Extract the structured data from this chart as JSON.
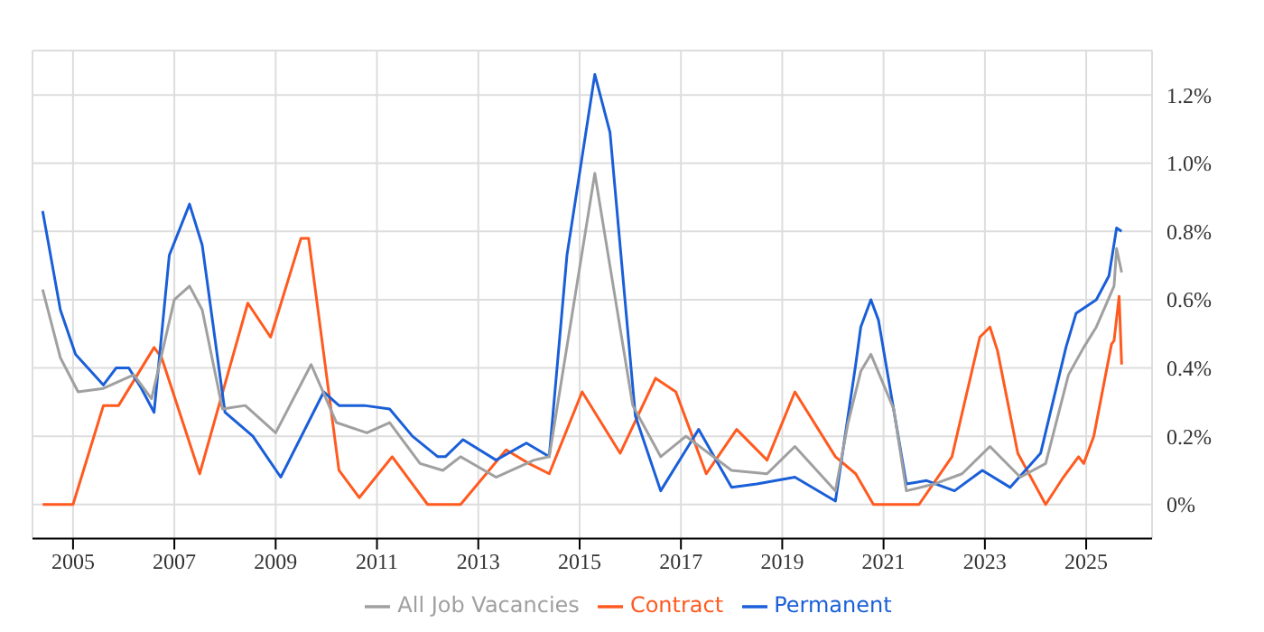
{
  "chart_data": {
    "type": "line",
    "xlim": [
      2004.2,
      2026.3
    ],
    "xticks": [
      2005,
      2007,
      2009,
      2011,
      2013,
      2015,
      2017,
      2019,
      2021,
      2023,
      2025
    ],
    "ylim": [
      -0.1,
      1.33
    ],
    "yticks": [
      {
        "value": 0,
        "label": "0%"
      },
      {
        "value": 0.2,
        "label": "0.2%"
      },
      {
        "value": 0.4,
        "label": "0.4%"
      },
      {
        "value": 0.6,
        "label": "0.6%"
      },
      {
        "value": 0.8,
        "label": "0.8%"
      },
      {
        "value": 1.0,
        "label": "1.0%"
      },
      {
        "value": 1.2,
        "label": "1.2%"
      }
    ],
    "grid": true,
    "legend": "bottom",
    "marker": "none",
    "line_style": "solid",
    "series": [
      {
        "name": "Contract",
        "color": "#ff5a1f",
        "x": [
          2004.4,
          2005.0,
          2005.6,
          2005.9,
          2006.6,
          2006.75,
          2007.5,
          2008.45,
          2008.9,
          2009.5,
          2009.65,
          2010.25,
          2010.65,
          2011.3,
          2012.0,
          2012.65,
          2013.55,
          2014.0,
          2014.4,
          2015.05,
          2015.8,
          2016.5,
          2016.9,
          2017.5,
          2018.1,
          2018.7,
          2019.25,
          2020.05,
          2020.45,
          2020.8,
          2021.7,
          2022.35,
          2022.9,
          2023.1,
          2023.25,
          2023.65,
          2024.2,
          2024.55,
          2024.85,
          2024.95,
          2025.15,
          2025.5,
          2025.55,
          2025.65,
          2025.7
        ],
        "values": [
          0,
          0,
          0.29,
          0.29,
          0.46,
          0.43,
          0.09,
          0.59,
          0.49,
          0.78,
          0.78,
          0.1,
          0.02,
          0.14,
          0,
          0,
          0.16,
          0.12,
          0.09,
          0.33,
          0.15,
          0.37,
          0.33,
          0.09,
          0.22,
          0.13,
          0.33,
          0.14,
          0.09,
          0,
          0,
          0.14,
          0.49,
          0.52,
          0.45,
          0.15,
          0,
          0.08,
          0.14,
          0.12,
          0.2,
          0.47,
          0.48,
          0.61,
          0.41
        ]
      },
      {
        "name": "Permanent",
        "color": "#1a5fd8",
        "x": [
          2004.4,
          2004.75,
          2005.05,
          2005.6,
          2005.85,
          2006.1,
          2006.35,
          2006.6,
          2006.9,
          2007.3,
          2007.55,
          2008.0,
          2008.55,
          2009.1,
          2009.95,
          2010.25,
          2010.75,
          2011.25,
          2011.7,
          2012.2,
          2012.35,
          2012.7,
          2013.35,
          2013.95,
          2014.4,
          2014.75,
          2015.3,
          2015.6,
          2016.1,
          2016.6,
          2017.35,
          2018.0,
          2018.5,
          2019.25,
          2020.05,
          2020.45,
          2020.55,
          2020.75,
          2020.9,
          2021.45,
          2021.85,
          2022.4,
          2022.95,
          2023.5,
          2024.1,
          2024.6,
          2024.8,
          2025.2,
          2025.45,
          2025.6,
          2025.7
        ],
        "values": [
          0.86,
          0.57,
          0.44,
          0.35,
          0.4,
          0.4,
          0.34,
          0.27,
          0.73,
          0.88,
          0.76,
          0.27,
          0.2,
          0.08,
          0.33,
          0.29,
          0.29,
          0.28,
          0.2,
          0.14,
          0.14,
          0.19,
          0.13,
          0.18,
          0.14,
          0.73,
          1.26,
          1.09,
          0.26,
          0.04,
          0.22,
          0.05,
          0.06,
          0.08,
          0.01,
          0.41,
          0.52,
          0.6,
          0.54,
          0.06,
          0.07,
          0.04,
          0.1,
          0.05,
          0.15,
          0.46,
          0.56,
          0.6,
          0.67,
          0.81,
          0.8
        ]
      },
      {
        "name": "All Job Vacancies",
        "color": "#a0a0a0",
        "x": [
          2004.4,
          2004.75,
          2005.1,
          2005.6,
          2006.2,
          2006.55,
          2007.0,
          2007.3,
          2007.55,
          2007.95,
          2008.4,
          2009.0,
          2009.7,
          2010.2,
          2010.8,
          2011.25,
          2011.85,
          2012.3,
          2012.65,
          2013.35,
          2014.1,
          2014.4,
          2015.3,
          2016.05,
          2016.6,
          2017.1,
          2018.0,
          2018.7,
          2019.25,
          2020.05,
          2020.3,
          2020.55,
          2020.75,
          2021.2,
          2021.45,
          2022.0,
          2022.55,
          2023.1,
          2023.7,
          2024.2,
          2024.65,
          2024.95,
          2025.2,
          2025.55,
          2025.6,
          2025.7
        ],
        "values": [
          0.63,
          0.43,
          0.33,
          0.34,
          0.38,
          0.31,
          0.6,
          0.64,
          0.57,
          0.28,
          0.29,
          0.21,
          0.41,
          0.24,
          0.21,
          0.24,
          0.12,
          0.1,
          0.14,
          0.08,
          0.13,
          0.14,
          0.97,
          0.29,
          0.14,
          0.2,
          0.1,
          0.09,
          0.17,
          0.04,
          0.24,
          0.39,
          0.44,
          0.28,
          0.04,
          0.06,
          0.09,
          0.17,
          0.08,
          0.12,
          0.38,
          0.46,
          0.52,
          0.64,
          0.75,
          0.68
        ]
      }
    ]
  }
}
